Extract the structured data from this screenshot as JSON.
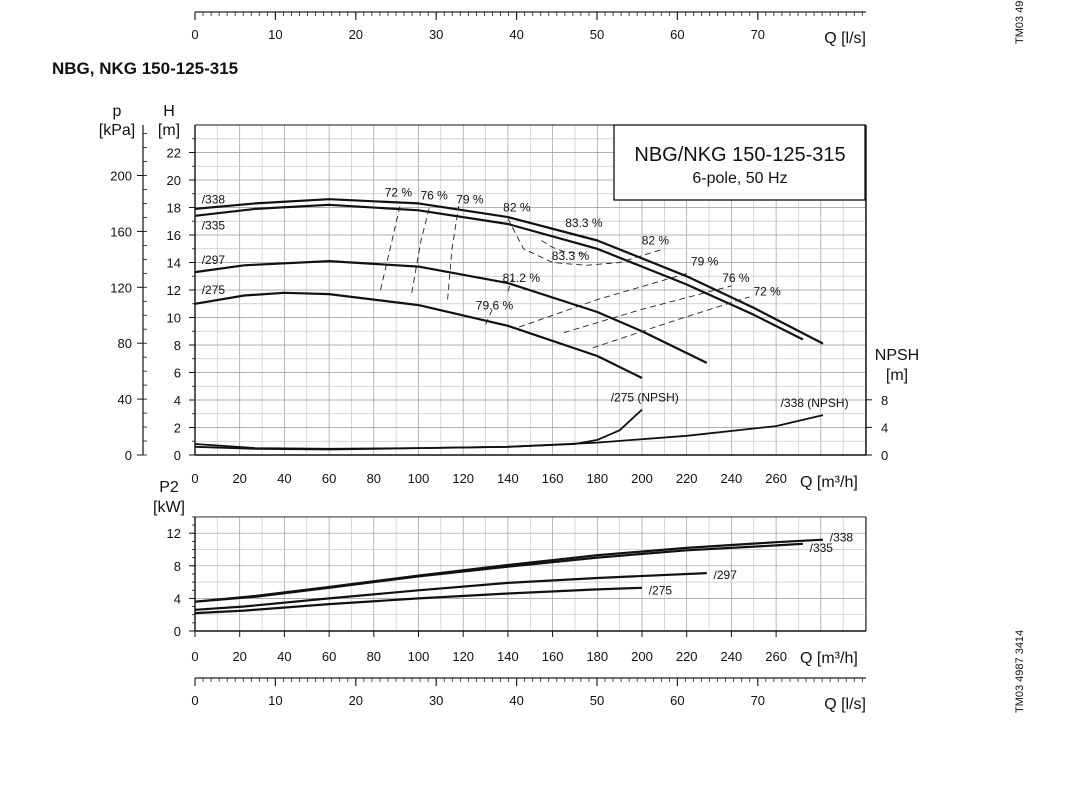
{
  "page": {
    "heading": "NBG, NKG 150-125-315",
    "side_code_top": "TM03 49",
    "side_code_bottom": "TM03 4987 3414"
  },
  "legend_box": {
    "line1": "NBG/NKG 150-125-315",
    "line2": "6-pole, 50 Hz"
  },
  "axes": {
    "flow_m3h": {
      "label": "Q [m³/h]",
      "ticks": [
        0,
        20,
        40,
        60,
        80,
        100,
        120,
        140,
        160,
        180,
        200,
        220,
        240,
        260
      ]
    },
    "flow_ls": {
      "label": "Q [l/s]",
      "ticks": [
        0,
        10,
        20,
        30,
        40,
        50,
        60,
        70
      ]
    },
    "head": {
      "label": "H",
      "unit": "[m]",
      "ticks": [
        0,
        2,
        4,
        6,
        8,
        10,
        12,
        14,
        16,
        18,
        20,
        22
      ]
    },
    "pressure": {
      "label": "p",
      "unit": "[kPa]",
      "ticks": [
        0,
        40,
        80,
        120,
        160,
        200
      ]
    },
    "npsh": {
      "label": "NPSH",
      "unit": "[m]",
      "ticks": [
        0,
        4,
        8
      ]
    },
    "power": {
      "label": "P2",
      "unit": "[kW]",
      "ticks": [
        0,
        4,
        8,
        12
      ]
    }
  },
  "chart_data": [
    {
      "type": "line",
      "title": "NBG/NKG 150-125-315",
      "subtitle": "6-pole, 50 Hz",
      "xlabel": "Q [m³/h]",
      "ylabel": "H [m]",
      "xlim": [
        0,
        300
      ],
      "ylim": [
        0,
        24
      ],
      "grid": true,
      "legend_position": "top-right",
      "series": [
        {
          "name": "/338",
          "x": [
            0,
            27,
            60,
            100,
            140,
            180,
            220,
            250,
            281
          ],
          "y": [
            17.9,
            18.3,
            18.6,
            18.3,
            17.3,
            15.6,
            13.0,
            10.7,
            8.1
          ]
        },
        {
          "name": "/335",
          "x": [
            0,
            27,
            60,
            100,
            140,
            180,
            220,
            250,
            272
          ],
          "y": [
            17.4,
            17.9,
            18.2,
            17.8,
            16.8,
            15.0,
            12.4,
            10.2,
            8.4
          ]
        },
        {
          "name": "/297",
          "x": [
            0,
            22,
            60,
            100,
            140,
            180,
            200,
            229
          ],
          "y": [
            13.3,
            13.8,
            14.1,
            13.7,
            12.5,
            10.4,
            9.0,
            6.7
          ]
        },
        {
          "name": "/275",
          "x": [
            0,
            22,
            40,
            60,
            100,
            140,
            180,
            200
          ],
          "y": [
            11.0,
            11.6,
            11.8,
            11.7,
            10.9,
            9.4,
            7.2,
            5.6
          ]
        },
        {
          "name": "/275 (NPSH)",
          "x": [
            0,
            27,
            60,
            100,
            140,
            170,
            180,
            190,
            200
          ],
          "y": [
            0.8,
            0.5,
            0.45,
            0.5,
            0.6,
            0.8,
            1.1,
            1.8,
            3.3
          ]
        },
        {
          "name": "/338 (NPSH)",
          "x": [
            0,
            27,
            60,
            100,
            140,
            180,
            220,
            260,
            281
          ],
          "y": [
            0.6,
            0.45,
            0.4,
            0.5,
            0.6,
            0.9,
            1.4,
            2.1,
            2.9
          ]
        }
      ],
      "efficiency_lines": [
        {
          "label": "72 %",
          "x": [
            83,
            88,
            92
          ],
          "y": [
            12,
            15.5,
            18.3
          ]
        },
        {
          "label": "76 %",
          "x": [
            97,
            101,
            105
          ],
          "y": [
            11.8,
            15.5,
            18.1
          ]
        },
        {
          "label": "79 %",
          "x": [
            113,
            115,
            118
          ],
          "y": [
            11.3,
            15,
            18.1
          ]
        },
        {
          "label": "82 %",
          "x": [
            140,
            147,
            160,
            175,
            190,
            200,
            210
          ],
          "y": [
            17.2,
            15.0,
            14.0,
            13.8,
            14.0,
            14.5,
            15.0
          ]
        },
        {
          "label": "83.3 %",
          "x": [
            155,
            160,
            165,
            170,
            175
          ],
          "y": [
            15.6,
            15.1,
            14.8,
            14.7,
            14.6
          ]
        },
        {
          "label": "81.2 %",
          "x": [
            140,
            142
          ],
          "y": [
            11.9,
            12.8
          ]
        },
        {
          "label": "79.6 %",
          "x": [
            130,
            133
          ],
          "y": [
            9.5,
            10.6
          ]
        },
        {
          "label": "79 %",
          "x": [
            145,
            180,
            220
          ],
          "y": [
            9.3,
            11.3,
            13.2
          ]
        },
        {
          "label": "76 %",
          "x": [
            165,
            200,
            240
          ],
          "y": [
            8.9,
            10.6,
            12.3
          ]
        },
        {
          "label": "72 %",
          "x": [
            178,
            215,
            248
          ],
          "y": [
            7.8,
            9.8,
            11.5
          ]
        }
      ],
      "efficiency_labels": [
        {
          "text": "72 %",
          "x": 91,
          "y": 18.8
        },
        {
          "text": "76 %",
          "x": 107,
          "y": 18.6
        },
        {
          "text": "79 %",
          "x": 123,
          "y": 18.3
        },
        {
          "text": "82 %",
          "x": 144,
          "y": 17.7
        },
        {
          "text": "83.3 %",
          "x": 174,
          "y": 16.6
        },
        {
          "text": "83.3 %",
          "x": 168,
          "y": 14.2
        },
        {
          "text": "82 %",
          "x": 206,
          "y": 15.3
        },
        {
          "text": "79 %",
          "x": 228,
          "y": 13.8
        },
        {
          "text": "76 %",
          "x": 242,
          "y": 12.6
        },
        {
          "text": "72 %",
          "x": 256,
          "y": 11.6
        },
        {
          "text": "81.2 %",
          "x": 146,
          "y": 12.6
        },
        {
          "text": "79.6 %",
          "x": 134,
          "y": 10.6
        }
      ],
      "curve_labels": [
        {
          "text": "/338",
          "x": 3,
          "y": 18.3
        },
        {
          "text": "/335",
          "x": 3,
          "y": 16.4
        },
        {
          "text": "/297",
          "x": 3,
          "y": 13.9
        },
        {
          "text": "/275",
          "x": 3,
          "y": 11.7
        },
        {
          "text": "/275 (NPSH)",
          "x": 186,
          "y": 3.9
        },
        {
          "text": "/338 (NPSH)",
          "x": 262,
          "y": 3.5
        }
      ]
    },
    {
      "type": "line",
      "xlabel": "Q [m³/h]",
      "ylabel": "P2 [kW]",
      "xlim": [
        0,
        300
      ],
      "ylim": [
        0,
        14
      ],
      "grid": true,
      "series": [
        {
          "name": "/338",
          "x": [
            0,
            27,
            60,
            100,
            140,
            180,
            220,
            260,
            281
          ],
          "y": [
            3.6,
            4.3,
            5.4,
            6.8,
            8.1,
            9.3,
            10.2,
            10.9,
            11.2
          ]
        },
        {
          "name": "/335",
          "x": [
            0,
            27,
            60,
            100,
            140,
            180,
            220,
            260,
            272
          ],
          "y": [
            3.6,
            4.2,
            5.3,
            6.7,
            7.9,
            9.0,
            9.9,
            10.5,
            10.7
          ]
        },
        {
          "name": "/297",
          "x": [
            0,
            22,
            60,
            100,
            140,
            180,
            229
          ],
          "y": [
            2.6,
            3.0,
            4.0,
            5.0,
            5.9,
            6.5,
            7.1
          ]
        },
        {
          "name": "/275",
          "x": [
            0,
            22,
            60,
            100,
            140,
            180,
            200
          ],
          "y": [
            2.2,
            2.5,
            3.3,
            4.0,
            4.6,
            5.1,
            5.3
          ]
        }
      ],
      "curve_labels": [
        {
          "text": "/338",
          "x": 284,
          "y": 11.5
        },
        {
          "text": "/335",
          "x": 275,
          "y": 10.2
        },
        {
          "text": "/297",
          "x": 232,
          "y": 6.9
        },
        {
          "text": "/275",
          "x": 203,
          "y": 5.0
        }
      ]
    }
  ]
}
